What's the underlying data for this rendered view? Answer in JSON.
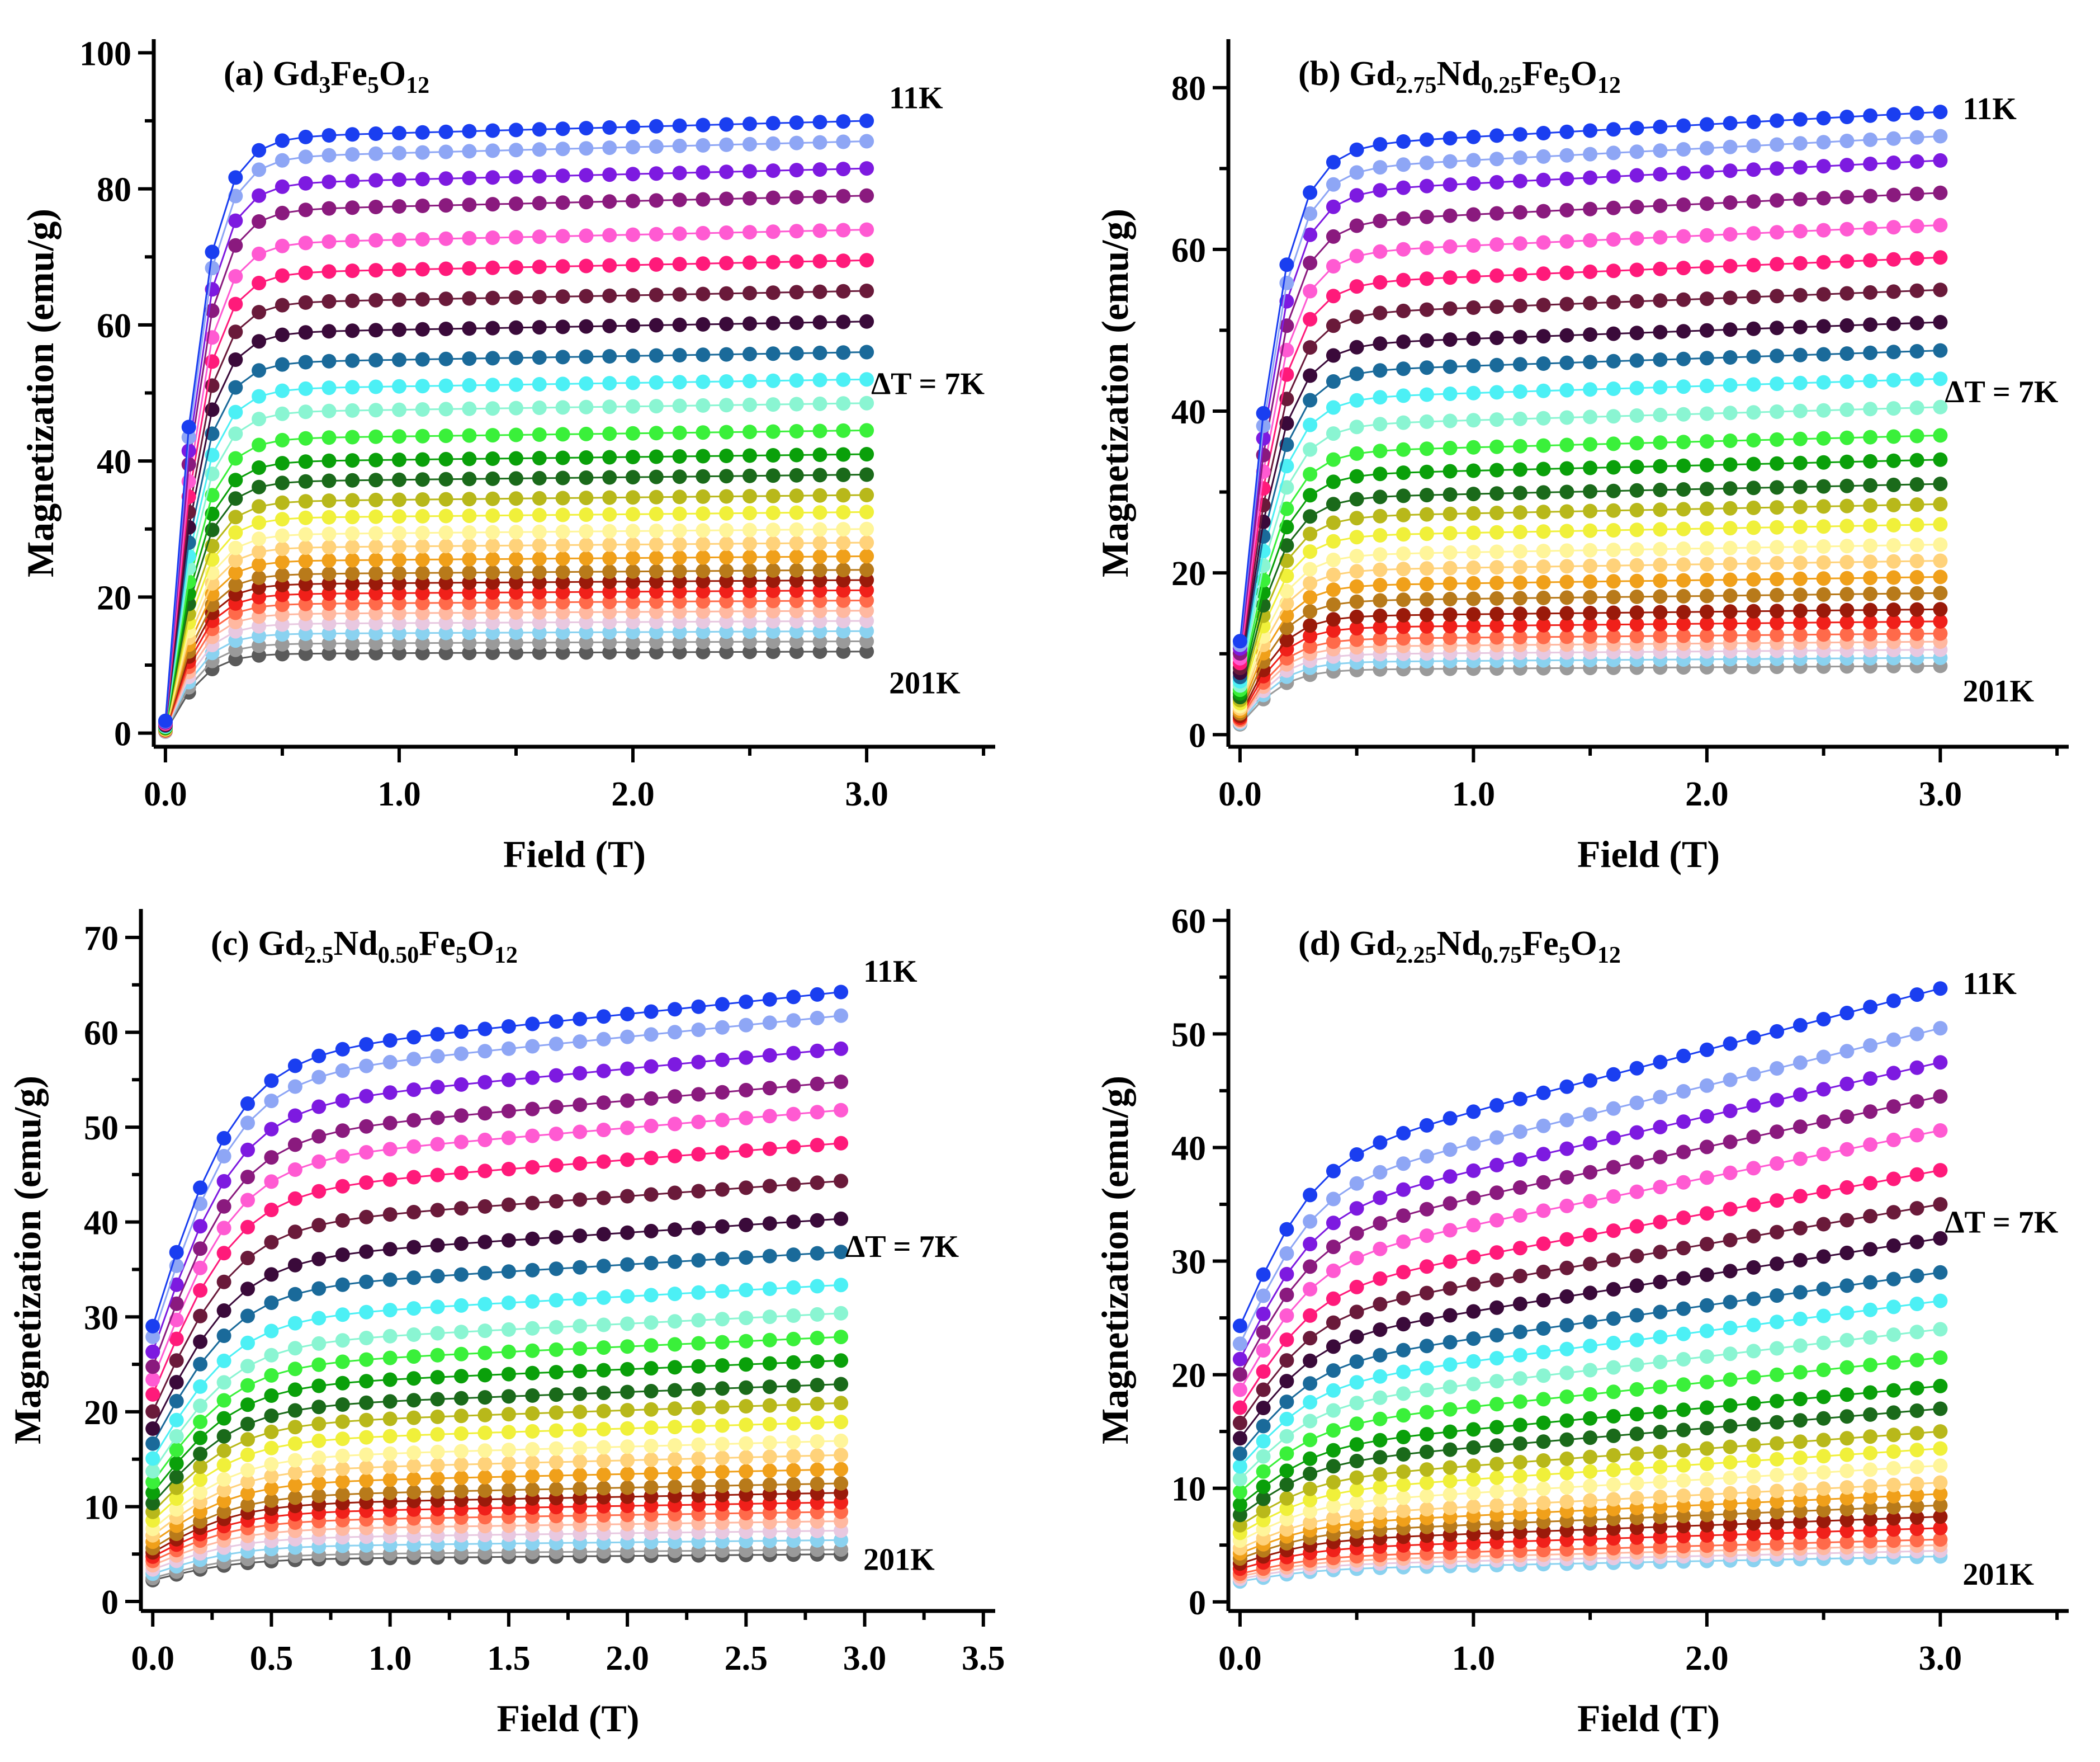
{
  "chart_data": [
    {
      "type": "scatter",
      "panel_label": "(a)",
      "title_parts": [
        {
          "text": "Gd",
          "sub": false
        },
        {
          "text": "3",
          "sub": true
        },
        {
          "text": "Fe",
          "sub": false
        },
        {
          "text": "5",
          "sub": true
        },
        {
          "text": "O",
          "sub": false
        },
        {
          "text": "12",
          "sub": true
        }
      ],
      "xlabel": "Field (T)",
      "ylabel": "Magnetization (emu/g)",
      "xlim": [
        -0.05,
        3.55
      ],
      "ylim": [
        -2,
        102
      ],
      "xticks": [
        0,
        1,
        2,
        3
      ],
      "xtick_labels": [
        "0.0",
        "1.0",
        "2.0",
        "3.0"
      ],
      "yticks": [
        0,
        20,
        40,
        60,
        80,
        100
      ],
      "ytick_labels": [
        "0",
        "20",
        "40",
        "60",
        "80",
        "100"
      ],
      "x_max": 3.0,
      "x_step": 0.1,
      "knee": 0.18,
      "slope_frac": 0.03,
      "m0_frac": 0.02,
      "saturation": [
        90,
        87,
        83,
        79,
        74,
        69.5,
        65,
        60.5,
        56,
        52,
        48.5,
        44.5,
        41,
        38,
        35,
        32.5,
        30,
        28,
        26,
        24,
        22.5,
        21,
        19.5,
        18,
        16.5,
        15,
        13.5,
        12
      ],
      "annotations": {
        "top": "11K",
        "mid": "ΔT = 7K",
        "bottom": "201K"
      },
      "annotation_values": {
        "top": 93.5,
        "mid": 51.5,
        "bottom": 7.5
      }
    },
    {
      "type": "scatter",
      "panel_label": "(b)",
      "title_parts": [
        {
          "text": "Gd",
          "sub": false
        },
        {
          "text": "2.75",
          "sub": true
        },
        {
          "text": "Nd",
          "sub": false
        },
        {
          "text": "0.25",
          "sub": true
        },
        {
          "text": "Fe",
          "sub": false
        },
        {
          "text": "5",
          "sub": true
        },
        {
          "text": "O",
          "sub": false
        },
        {
          "text": "12",
          "sub": true
        }
      ],
      "xlabel": "Field (T)",
      "ylabel": "Magnetization (emu/g)",
      "xlim": [
        -0.05,
        3.55
      ],
      "ylim": [
        -1.5,
        86
      ],
      "xticks": [
        0,
        1,
        2,
        3
      ],
      "xtick_labels": [
        "0.0",
        "1.0",
        "2.0",
        "3.0"
      ],
      "yticks": [
        0,
        20,
        40,
        60,
        80
      ],
      "ytick_labels": [
        "0",
        "20",
        "40",
        "60",
        "80"
      ],
      "x_max": 3.0,
      "x_step": 0.1,
      "knee": 0.2,
      "slope_frac": 0.06,
      "m0_frac": 0.15,
      "saturation": [
        77,
        74,
        71,
        67,
        63,
        59,
        55,
        51,
        47.5,
        44,
        40.5,
        37,
        34,
        31,
        28.5,
        26,
        23.5,
        21.5,
        19.5,
        17.5,
        15.5,
        14,
        12.5,
        11.5,
        10.5,
        9.5,
        8.5
      ],
      "annotations": {
        "top": "11K",
        "mid": "ΔT = 7K",
        "bottom": "201K"
      },
      "annotation_values": {
        "top": 77.5,
        "mid": 42.5,
        "bottom": 5.5
      }
    },
    {
      "type": "scatter",
      "panel_label": "(c)",
      "title_parts": [
        {
          "text": "Gd",
          "sub": false
        },
        {
          "text": "2.5",
          "sub": true
        },
        {
          "text": "Nd",
          "sub": false
        },
        {
          "text": "0.50",
          "sub": true
        },
        {
          "text": "Fe",
          "sub": false
        },
        {
          "text": "5",
          "sub": true
        },
        {
          "text": "O",
          "sub": false
        },
        {
          "text": "12",
          "sub": true
        }
      ],
      "xlabel": "Field (T)",
      "ylabel": "Magnetization (emu/g)",
      "xlim": [
        -0.05,
        3.55
      ],
      "ylim": [
        -1,
        73
      ],
      "xticks": [
        0,
        0.5,
        1,
        1.5,
        2,
        2.5,
        3,
        3.5
      ],
      "xtick_labels": [
        "0.0",
        "0.5",
        "1.0",
        "1.5",
        "2.0",
        "2.5",
        "3.0",
        "3.5"
      ],
      "yticks": [
        0,
        10,
        20,
        30,
        40,
        50,
        60,
        70
      ],
      "ytick_labels": [
        "0",
        "10",
        "20",
        "30",
        "40",
        "50",
        "60",
        "70"
      ],
      "x_max": 2.9,
      "x_step": 0.1,
      "knee": 0.35,
      "slope_frac": 0.12,
      "m0_frac": 0.45,
      "saturation": [
        64.5,
        62,
        58.5,
        55,
        52,
        48.5,
        44.5,
        40.5,
        37,
        33.5,
        30.5,
        28,
        25.5,
        23,
        21,
        19,
        17,
        15.5,
        14,
        12.5,
        11.5,
        10.5,
        9.5,
        8.5,
        7.5,
        6.5,
        5.5,
        5
      ],
      "annotations": {
        "top": "11K",
        "mid": "ΔT = 7K",
        "bottom": "201K"
      },
      "annotation_values": {
        "top": 66.5,
        "mid": 37.5,
        "bottom": 4.5
      }
    },
    {
      "type": "scatter",
      "panel_label": "(d)",
      "title_parts": [
        {
          "text": "Gd",
          "sub": false
        },
        {
          "text": "2.25",
          "sub": true
        },
        {
          "text": "Nd",
          "sub": false
        },
        {
          "text": "0.75",
          "sub": true
        },
        {
          "text": "Fe",
          "sub": false
        },
        {
          "text": "5",
          "sub": true
        },
        {
          "text": "O",
          "sub": false
        },
        {
          "text": "12",
          "sub": true
        }
      ],
      "xlabel": "Field (T)",
      "ylabel": "Magnetization (emu/g)",
      "xlim": [
        -0.05,
        3.55
      ],
      "ylim": [
        -0.8,
        61
      ],
      "xticks": [
        0,
        1,
        2,
        3
      ],
      "xtick_labels": [
        "0.0",
        "1.0",
        "2.0",
        "3.0"
      ],
      "yticks": [
        0,
        10,
        20,
        30,
        40,
        50,
        60
      ],
      "ytick_labels": [
        "0",
        "10",
        "20",
        "30",
        "40",
        "50",
        "60"
      ],
      "x_max": 3.0,
      "x_step": 0.1,
      "knee": 0.3,
      "slope_frac": 0.3,
      "m0_frac": 0.45,
      "saturation": [
        54,
        50.5,
        47.5,
        44.5,
        41.5,
        38,
        35,
        32,
        29,
        26.5,
        24,
        21.5,
        19,
        17,
        15,
        13.5,
        12,
        10.5,
        9.5,
        8.5,
        7.5,
        6.5,
        5.5,
        5,
        4.5,
        4
      ],
      "annotations": {
        "top": "11K",
        "mid": "ΔT = 7K",
        "bottom": "201K"
      },
      "annotation_values": {
        "top": 54.5,
        "mid": 33.5,
        "bottom": 2.5
      }
    }
  ],
  "series_colors": [
    "#1a3ef0",
    "#8ea6f5",
    "#7d1ae0",
    "#8a1a7e",
    "#ff5ad2",
    "#ff1a7a",
    "#6a1a3a",
    "#3a0a3a",
    "#1a6a9a",
    "#4cf0f5",
    "#8af5d2",
    "#3af03a",
    "#0aa00a",
    "#1a6a1a",
    "#b8b81a",
    "#f0f03a",
    "#fff59a",
    "#ffd27a",
    "#f0a01a",
    "#b87a1a",
    "#9a1a0a",
    "#f0201a",
    "#ff6a4a",
    "#ffb8a0",
    "#e8c8e0",
    "#8ad2f0",
    "#9a9a9a",
    "#5a5a5a"
  ]
}
